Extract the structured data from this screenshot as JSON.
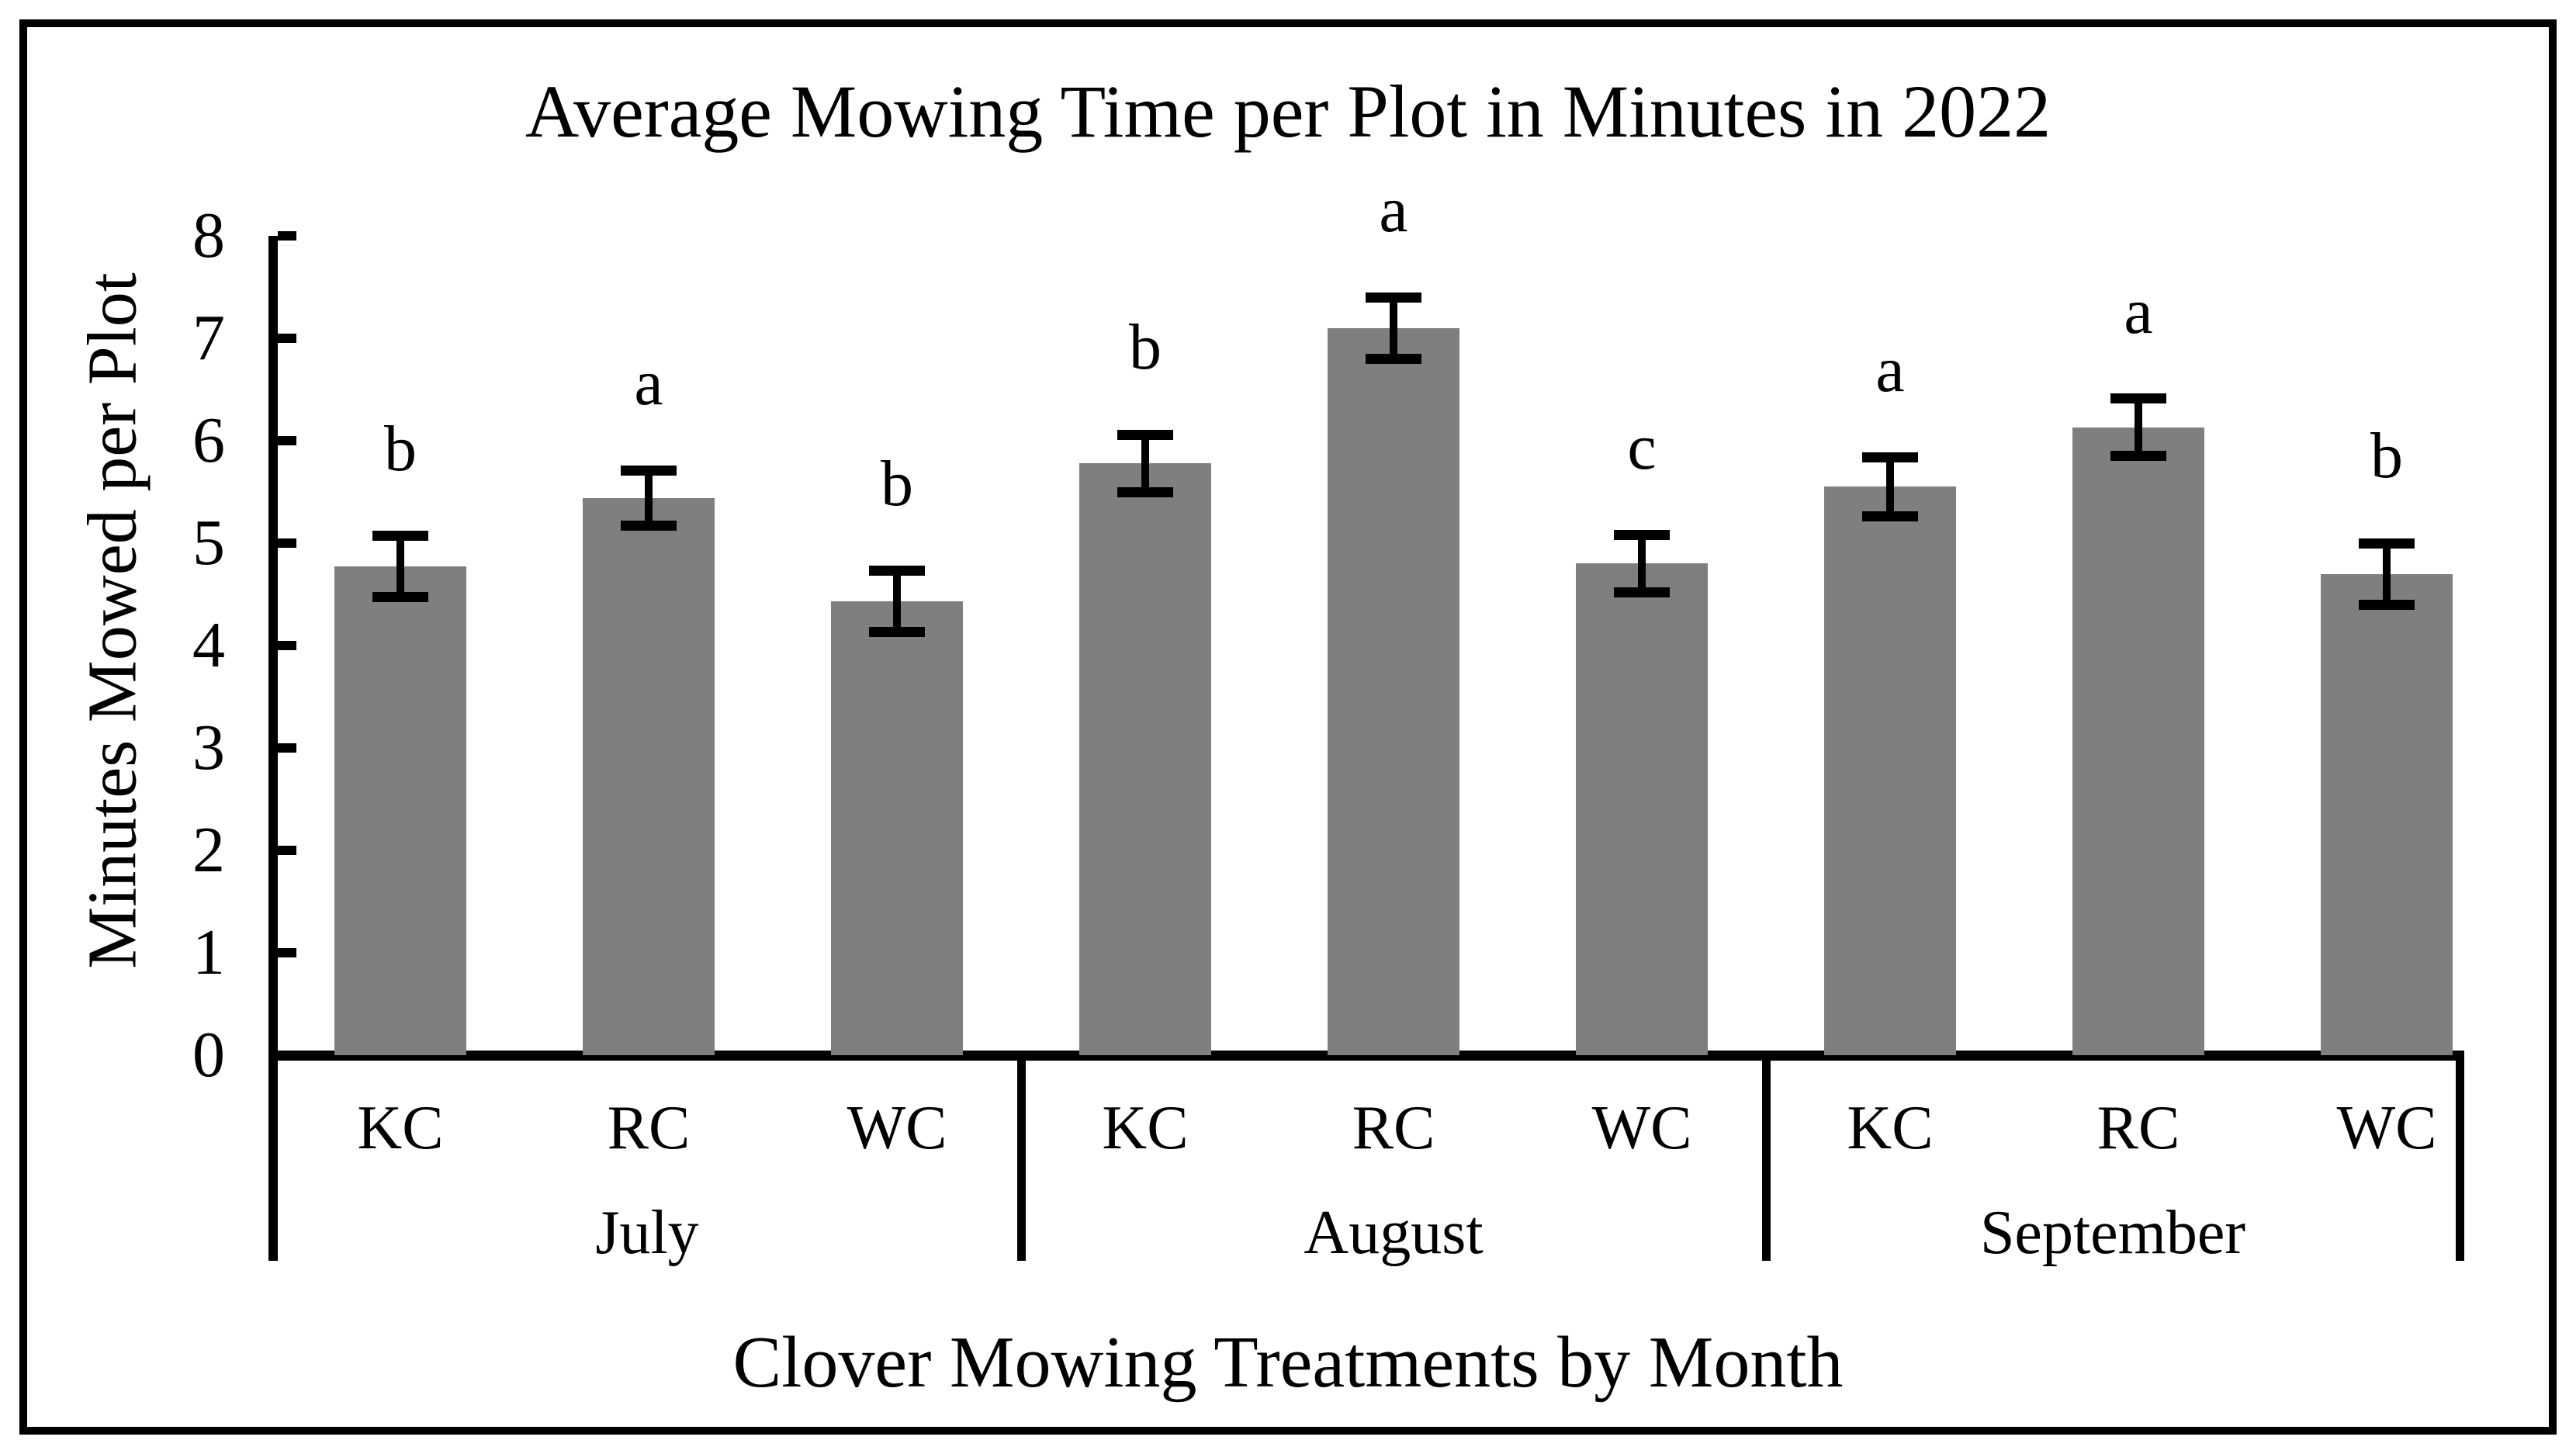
{
  "chart_data": {
    "type": "bar",
    "title": "Average Mowing Time per Plot in Minutes in 2022",
    "xlabel": "Clover Mowing Treatments by Month",
    "ylabel": "Minutes Mowed per Plot",
    "ylim": [
      0,
      8
    ],
    "yticks": [
      0,
      1,
      2,
      3,
      4,
      5,
      6,
      7,
      8
    ],
    "bar_color": "#7F7F7F",
    "axis_color": "#000000",
    "grid": false,
    "legend": false,
    "error_bars": true,
    "groups": [
      {
        "month": "July",
        "bars": [
          {
            "treatment": "KC",
            "value": 4.77,
            "error": 0.3,
            "letter": "b"
          },
          {
            "treatment": "RC",
            "value": 5.44,
            "error": 0.27,
            "letter": "a"
          },
          {
            "treatment": "WC",
            "value": 4.43,
            "error": 0.3,
            "letter": "b"
          }
        ]
      },
      {
        "month": "August",
        "bars": [
          {
            "treatment": "KC",
            "value": 5.78,
            "error": 0.28,
            "letter": "b"
          },
          {
            "treatment": "RC",
            "value": 7.1,
            "error": 0.3,
            "letter": "a"
          },
          {
            "treatment": "WC",
            "value": 4.8,
            "error": 0.28,
            "letter": "c"
          }
        ]
      },
      {
        "month": "September",
        "bars": [
          {
            "treatment": "KC",
            "value": 5.55,
            "error": 0.29,
            "letter": "a"
          },
          {
            "treatment": "RC",
            "value": 6.13,
            "error": 0.28,
            "letter": "a"
          },
          {
            "treatment": "WC",
            "value": 4.7,
            "error": 0.3,
            "letter": "b"
          }
        ]
      }
    ]
  }
}
